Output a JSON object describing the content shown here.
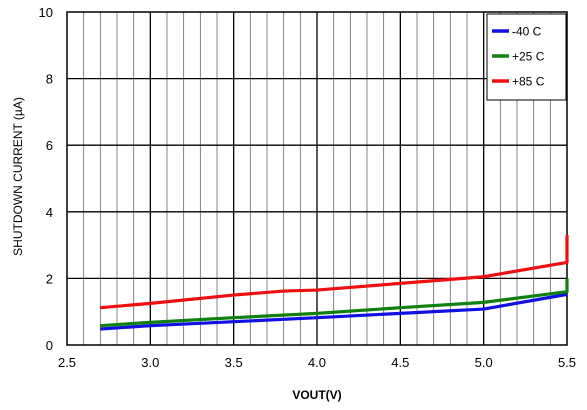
{
  "chart_data": {
    "type": "line",
    "title": "",
    "xlabel": "VOUT(V)",
    "ylabel": "SHUTDOWN CURRENT (µA)",
    "xlim": [
      2.5,
      5.5
    ],
    "ylim": [
      0,
      10
    ],
    "xticks": [
      "2.5",
      "3.0",
      "3.5",
      "4.0",
      "4.5",
      "5.0",
      "5.5"
    ],
    "yticks": [
      "0",
      "2",
      "4",
      "6",
      "8",
      "10"
    ],
    "grid": true,
    "legend_position": "top-right",
    "series": [
      {
        "name": "-40 C",
        "color": "#1010e0",
        "x": [
          2.7,
          3.0,
          3.5,
          4.0,
          4.5,
          5.0,
          5.5
        ],
        "y": [
          0.48,
          0.58,
          0.7,
          0.82,
          0.95,
          1.08,
          1.52
        ]
      },
      {
        "name": "+25 C",
        "color": "#108010",
        "x": [
          2.7,
          3.0,
          3.5,
          4.0,
          4.5,
          5.0,
          5.5,
          5.5
        ],
        "y": [
          0.58,
          0.68,
          0.82,
          0.95,
          1.12,
          1.28,
          1.6,
          2.0
        ]
      },
      {
        "name": "+85 C",
        "color": "#ee1010",
        "x": [
          2.7,
          3.0,
          3.5,
          3.8,
          4.0,
          4.5,
          5.0,
          5.5,
          5.5
        ],
        "y": [
          1.12,
          1.25,
          1.5,
          1.62,
          1.65,
          1.85,
          2.05,
          2.48,
          3.3
        ]
      }
    ]
  }
}
